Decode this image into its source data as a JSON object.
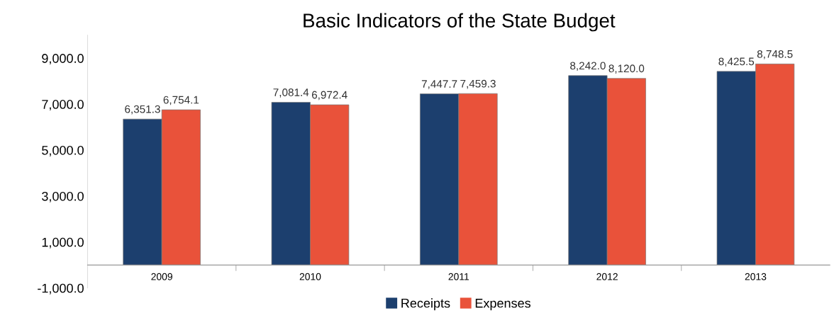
{
  "chart_data": {
    "type": "bar",
    "title": "Basic Indicators of the State Budget",
    "categories": [
      "2009",
      "2010",
      "2011",
      "2012",
      "2013"
    ],
    "series": [
      {
        "name": "Receipts",
        "color": "#1c3f6e",
        "values": [
          6351.3,
          7081.4,
          7447.7,
          8242.0,
          8425.5
        ],
        "value_labels": [
          "6,351.3",
          "7,081.4",
          "7,447.7",
          "8,242.0",
          "8,425.5"
        ]
      },
      {
        "name": "Expenses",
        "color": "#e9523a",
        "values": [
          6754.1,
          6972.4,
          7459.3,
          8120.0,
          8748.5
        ],
        "value_labels": [
          "6,754.1",
          "6,972.4",
          "7,459.3",
          "8,120.0",
          "8,748.5"
        ]
      }
    ],
    "ylim": [
      -1000,
      10000
    ],
    "yticks": [
      {
        "value": -1000,
        "label": "-1,000.0"
      },
      {
        "value": 1000,
        "label": "1,000.0"
      },
      {
        "value": 3000,
        "label": "3,000.0"
      },
      {
        "value": 5000,
        "label": "5,000.0"
      },
      {
        "value": 7000,
        "label": "7,000.0"
      },
      {
        "value": 9000,
        "label": "9,000.0"
      }
    ],
    "grid": false,
    "legend": "bottom"
  }
}
